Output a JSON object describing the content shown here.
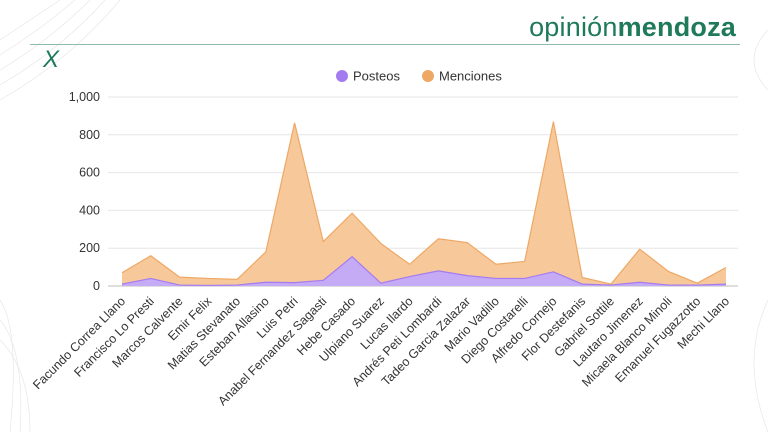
{
  "brand": {
    "part1": "opinión",
    "part2": "mendoza"
  },
  "x_logo": "X",
  "colors": {
    "brand": "#1f7a5a",
    "posteos_fill": "#c5aaf6",
    "posteos_stroke": "#a47cf0",
    "menciones_fill": "#f6c89a",
    "menciones_stroke": "#eea865",
    "grid": "#e6e6e6"
  },
  "chart_data": {
    "type": "area",
    "title": "",
    "xlabel": "",
    "ylabel": "",
    "ylim": [
      0,
      1000
    ],
    "yticks": [
      0,
      200,
      400,
      600,
      800,
      1000
    ],
    "ytick_labels": [
      "0",
      "200",
      "400",
      "600",
      "800",
      "1,000"
    ],
    "grid": true,
    "legend_position": "top",
    "stacked": true,
    "categories": [
      "Facundo Correa Llano",
      "Francisco Lo Presti",
      "Marcos Calvente",
      "Emir Felix",
      "Matias Stevanato",
      "Esteban Allasino",
      "Luis Petri",
      "Anabel Fernandez Sagasti",
      "Hebe Casado",
      "Ulpiano Suarez",
      "Lucas Ilardo",
      "Andrés Peti Lombardi",
      "Tadeo Garcia Zalazar",
      "Mario Vadillo",
      "Diego Costarelli",
      "Alfredo Cornejo",
      "Flor Destefanis",
      "Gabriel Sottile",
      "Lautaro Jimenez",
      "Micaela Blanco Minoli",
      "Emanuel Fugazzotto",
      "Mechi Llano"
    ],
    "series": [
      {
        "name": "Posteos",
        "values": [
          10,
          40,
          5,
          3,
          5,
          20,
          18,
          30,
          155,
          15,
          50,
          80,
          55,
          40,
          40,
          75,
          10,
          5,
          20,
          5,
          5,
          10
        ]
      },
      {
        "name": "Menciones",
        "values": [
          60,
          120,
          42,
          37,
          30,
          160,
          845,
          205,
          230,
          210,
          65,
          170,
          175,
          75,
          90,
          795,
          35,
          5,
          175,
          72,
          10,
          88
        ]
      }
    ]
  }
}
